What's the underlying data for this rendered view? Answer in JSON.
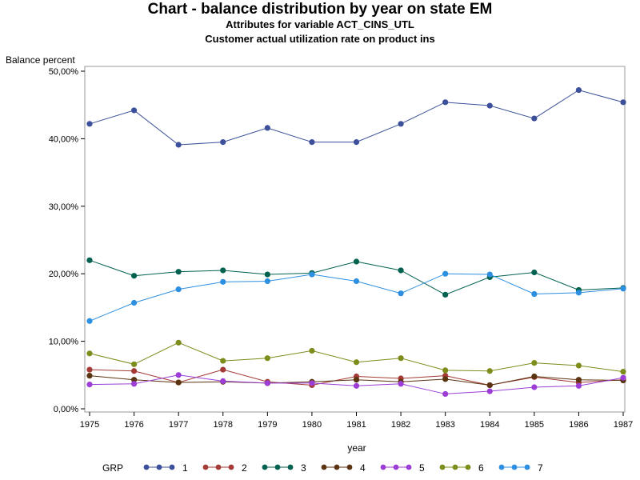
{
  "chart_data": {
    "type": "line",
    "title": "Chart - balance distribution by year on state EM",
    "subtitle1": "Attributes for variable ACT_CINS_UTL",
    "subtitle2": "Customer actual utilization rate on product ins",
    "ylabel": "Balance percent",
    "xlabel": "year",
    "ylim": [
      0,
      50
    ],
    "y_ticks": [
      0,
      10,
      20,
      30,
      40,
      50
    ],
    "y_tick_labels": [
      "0,00%",
      "10,00%",
      "20,00%",
      "30,00%",
      "40,00%",
      "50,00%"
    ],
    "x": [
      1975,
      1976,
      1977,
      1978,
      1979,
      1980,
      1981,
      1982,
      1983,
      1984,
      1985,
      1986,
      1987
    ],
    "x_tick_labels": [
      "1975",
      "1976",
      "1977",
      "1978",
      "1979",
      "1980",
      "1981",
      "1982",
      "1983",
      "1984",
      "1985",
      "1986",
      "1987"
    ],
    "legend_title": "GRP",
    "legend_position": "bottom",
    "grid": false,
    "series": [
      {
        "name": "1",
        "color": "#3b4f9a",
        "values": [
          42.2,
          44.2,
          39.1,
          39.5,
          41.6,
          39.5,
          39.5,
          42.2,
          45.4,
          44.9,
          43.0,
          47.2,
          45.4
        ]
      },
      {
        "name": "2",
        "color": "#a33a35",
        "values": [
          5.8,
          5.6,
          3.9,
          5.8,
          4.0,
          3.5,
          4.8,
          4.5,
          4.9,
          3.5,
          4.7,
          3.9,
          4.3
        ]
      },
      {
        "name": "3",
        "color": "#00614e",
        "values": [
          22.0,
          19.7,
          20.3,
          20.5,
          19.9,
          20.1,
          21.8,
          20.5,
          16.9,
          19.5,
          20.2,
          17.6,
          17.9
        ]
      },
      {
        "name": "4",
        "color": "#5a3310",
        "values": [
          4.9,
          4.3,
          3.9,
          4.0,
          3.8,
          4.0,
          4.3,
          4.0,
          4.4,
          3.5,
          4.8,
          4.3,
          4.2
        ]
      },
      {
        "name": "5",
        "color": "#9c3ed6",
        "values": [
          3.6,
          3.7,
          5.0,
          4.1,
          3.8,
          3.8,
          3.4,
          3.7,
          2.2,
          2.6,
          3.2,
          3.4,
          4.6
        ]
      },
      {
        "name": "6",
        "color": "#7d8c1a",
        "values": [
          8.2,
          6.6,
          9.8,
          7.1,
          7.5,
          8.6,
          6.9,
          7.5,
          5.7,
          5.6,
          6.8,
          6.4,
          5.5
        ]
      },
      {
        "name": "7",
        "color": "#2d8fe0",
        "values": [
          13.0,
          15.7,
          17.7,
          18.8,
          18.9,
          19.9,
          18.9,
          17.1,
          20.0,
          19.9,
          17.0,
          17.2,
          17.8
        ]
      }
    ]
  }
}
